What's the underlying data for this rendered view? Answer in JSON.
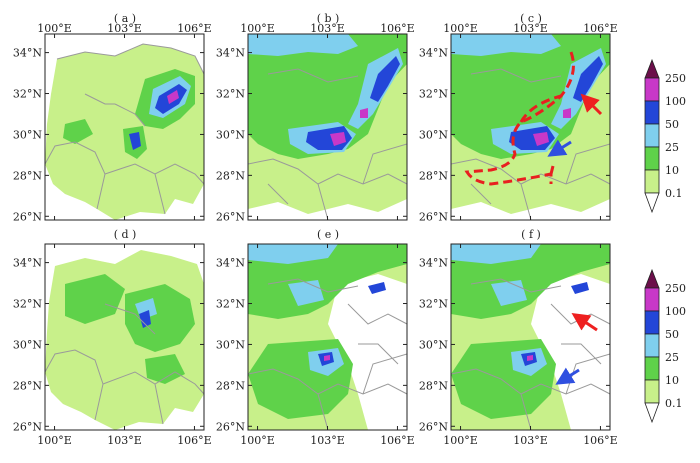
{
  "panels": [
    {
      "label": "( a )",
      "row": 0,
      "col": 0
    },
    {
      "label": "( b )",
      "row": 0,
      "col": 1
    },
    {
      "label": "( c )",
      "row": 0,
      "col": 2
    },
    {
      "label": "( d )",
      "row": 1,
      "col": 0
    },
    {
      "label": "( e )",
      "row": 1,
      "col": 1
    },
    {
      "label": "( f )",
      "row": 1,
      "col": 2
    }
  ],
  "lat_ticks": [
    "34°N",
    "32°N",
    "30°N",
    "28°N",
    "26°N"
  ],
  "lon_ticks": [
    "100°E",
    "103°E",
    "106°E"
  ],
  "colorbar_labels": [
    "250",
    "100",
    "50",
    "25",
    "10",
    "0.1"
  ],
  "colors": {
    "c01": "#c8f08a",
    "c10": "#5fd24a",
    "c25": "#7fcfee",
    "c50": "#2346d8",
    "c100": "#c838c8",
    "c250": "#6b0f4a",
    "border": "#9a9a9a",
    "arrow_red": "#ee2020",
    "arrow_blue": "#3050e0",
    "dashed_line": "#e82020"
  }
}
